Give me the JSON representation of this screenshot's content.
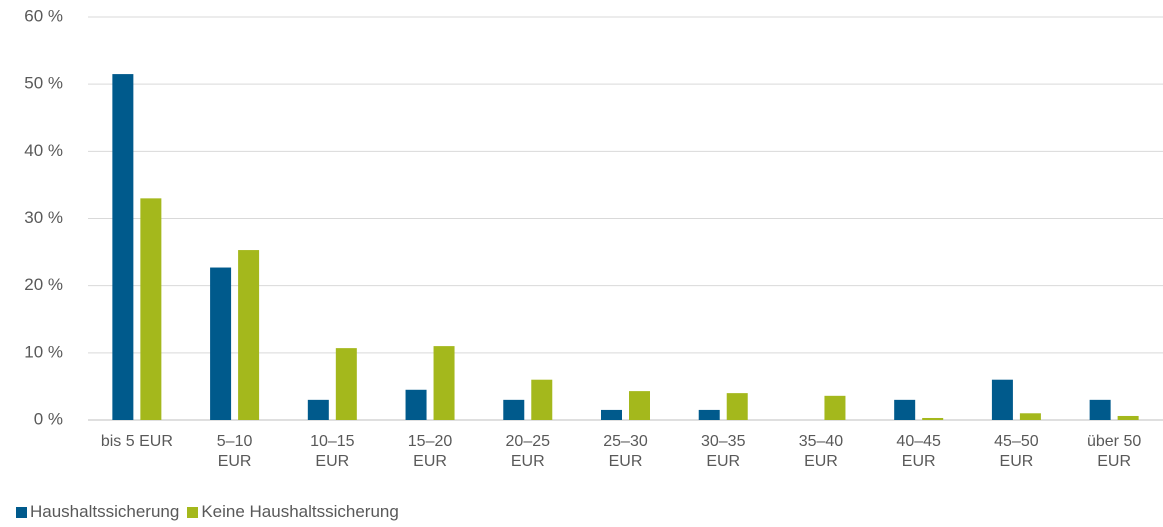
{
  "chart_data": {
    "type": "bar",
    "categories": [
      "bis 5 EUR",
      "5–10\nEUR",
      "10–15\nEUR",
      "15–20\nEUR",
      "20–25\nEUR",
      "25–30\nEUR",
      "30–35\nEUR",
      "35–40\nEUR",
      "40–45\nEUR",
      "45–50\nEUR",
      "über 50\nEUR"
    ],
    "series": [
      {
        "name": "Haushaltssicherung",
        "color": "#005a8c",
        "values": [
          51.5,
          22.7,
          3,
          4.5,
          3,
          1.5,
          1.5,
          0,
          3,
          6,
          3
        ]
      },
      {
        "name": "Keine Haushaltssicherung",
        "color": "#a4b81c",
        "values": [
          33,
          25.3,
          10.7,
          11,
          6,
          4.3,
          4,
          3.6,
          0.3,
          1,
          0.6
        ]
      }
    ],
    "ylim": [
      0,
      60
    ],
    "yticks": [
      {
        "value": 0,
        "label": "0 %"
      },
      {
        "value": 10,
        "label": "10 %"
      },
      {
        "value": 20,
        "label": "20 %"
      },
      {
        "value": 30,
        "label": "30 %"
      },
      {
        "value": 40,
        "label": "40 %"
      },
      {
        "value": 50,
        "label": "50 %"
      },
      {
        "value": 60,
        "label": "60 %"
      }
    ],
    "grid": true,
    "legend": "bottom-left"
  }
}
